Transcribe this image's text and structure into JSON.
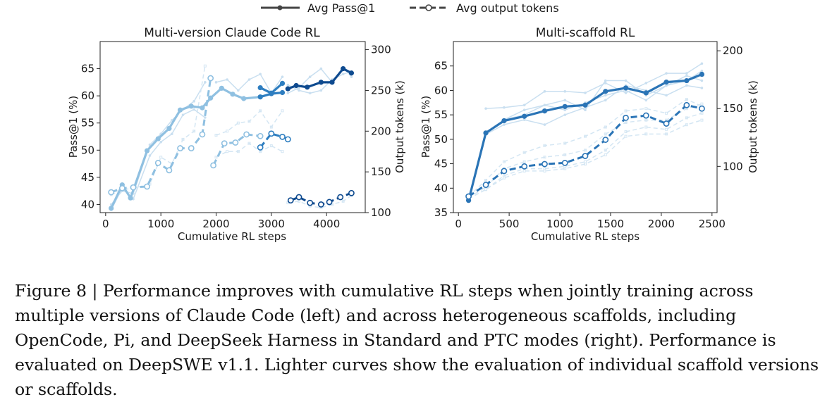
{
  "legend": {
    "pass_label": "Avg Pass@1",
    "tokens_label": "Avg output tokens"
  },
  "caption": "Figure 8 | Performance improves with cumulative RL steps when jointly training across multiple versions of Claude Code (left) and across heterogeneous scaffolds, including OpenCode, Pi, and DeepSeek Harness in Standard and PTC modes (right). Performance is evaluated on DeepSWE v1.1. Lighter curves show the evaluation of individual scaffold versions or scaffolds.",
  "chart_data": [
    {
      "type": "line",
      "title": "Multi-version Claude Code RL",
      "xlabel": "Cumulative RL steps",
      "ylabel_left": "Pass@1 (%)",
      "ylabel_right": "Output tokens (k)",
      "xlim": [
        -100,
        4700
      ],
      "ylim_left": [
        38.5,
        70
      ],
      "ylim_right": [
        100,
        310
      ],
      "xticks": [
        0,
        1000,
        2000,
        3000,
        4000
      ],
      "yticks_left": [
        40,
        45,
        50,
        55,
        60,
        65
      ],
      "yticks_right": [
        100,
        150,
        200,
        250,
        300
      ],
      "segments": [
        {
          "color": "#8fc0e1",
          "pass": {
            "x": [
              100,
              300,
              450,
              750,
              950,
              1150,
              1350,
              1550,
              1750,
              1900,
              2100,
              2300,
              2500,
              2800
            ],
            "y": [
              39.3,
              43.6,
              41.2,
              49.9,
              52.1,
              54.0,
              57.4,
              58.1,
              57.8,
              59.6,
              61.4,
              60.3,
              59.5,
              59.8
            ]
          },
          "tokens": {
            "x": [
              100,
              300,
              500,
              750,
              950,
              1150,
              1350,
              1550,
              1750,
              1900
            ],
            "y": [
              125,
              130,
              131,
              132,
              161,
              152,
              179,
              179,
              196,
              265
            ]
          },
          "tokens_b": {
            "x": [
              1950,
              2150,
              2350,
              2550,
              2800
            ],
            "y": [
              158,
              185,
              186,
              196,
              194
            ]
          }
        },
        {
          "color": "#2e7ec0",
          "pass": {
            "x": [
              2800,
              3000,
              3200
            ],
            "y": [
              61.5,
              60.5,
              62.3
            ]
          },
          "pass_b": {
            "x": [
              2800,
              3000,
              3200
            ],
            "y": [
              59.8,
              60.4,
              60.6
            ]
          },
          "tokens": {
            "x": [
              2800,
              3000,
              3200,
              3300
            ],
            "y": [
              180,
              197,
              193,
              190
            ]
          }
        },
        {
          "color": "#0e4a8f",
          "pass": {
            "x": [
              3300,
              3450,
              3650,
              3900,
              4100,
              4300,
              4450
            ],
            "y": [
              61.3,
              61.9,
              61.6,
              62.5,
              62.5,
              65.0,
              64.2
            ]
          },
          "tokens": {
            "x": [
              3350,
              3500,
              3700,
              3900,
              4050,
              4250,
              4450
            ],
            "y": [
              115,
              119,
              112,
              110,
              113,
              119,
              124
            ]
          }
        }
      ],
      "background": [
        {
          "x": [
            100,
            300,
            500,
            800,
            1000,
            1200,
            1400,
            1600,
            1800
          ],
          "y": [
            40,
            42.5,
            42,
            51,
            53,
            55.5,
            57.5,
            59,
            62.5
          ]
        },
        {
          "x": [
            100,
            300,
            500,
            800,
            1000,
            1200,
            1400,
            1600,
            1800
          ],
          "y": [
            39,
            43,
            41,
            49,
            51.5,
            53,
            56.5,
            57.5,
            56
          ]
        },
        {
          "x": [
            2000,
            2200,
            2400,
            2600,
            2800,
            3000,
            3200
          ],
          "y": [
            62.5,
            63,
            61,
            63,
            64,
            60.5,
            63.5
          ]
        },
        {
          "x": [
            3300,
            3500,
            3700,
            3900,
            4100,
            4300,
            4450
          ],
          "y": [
            60.5,
            61.5,
            63.5,
            65,
            62.5,
            65.3,
            63.5
          ]
        },
        {
          "x": [
            3300,
            3500,
            3700,
            3900,
            4100,
            4300,
            4450
          ],
          "y": [
            62,
            61,
            60.5,
            61,
            63,
            64,
            64.5
          ]
        }
      ],
      "background_tokens": [
        {
          "x": [
            100,
            300,
            500,
            800,
            1000,
            1200,
            1400,
            1600,
            1800
          ],
          "y": [
            122,
            128,
            130,
            135,
            168,
            160,
            190,
            200,
            280
          ]
        },
        {
          "x": [
            2000,
            2200,
            2400,
            2600,
            2800,
            3000,
            3200
          ],
          "y": [
            168,
            175,
            175,
            185,
            175,
            182,
            175
          ]
        },
        {
          "x": [
            2000,
            2200,
            2400,
            2600,
            2800,
            3000,
            3200
          ],
          "y": [
            195,
            200,
            210,
            212,
            225,
            205,
            225
          ]
        },
        {
          "x": [
            3300,
            3500,
            3700,
            3900,
            4100,
            4300,
            4450
          ],
          "y": [
            112,
            114,
            108,
            106,
            110,
            114,
            121
          ]
        }
      ]
    },
    {
      "type": "line",
      "title": "Multi-scaffold RL",
      "xlabel": "Cumulative RL steps",
      "ylabel_left": "Pass@1 (%)",
      "ylabel_right": "Output tokens (k)",
      "xlim": [
        -50,
        2550
      ],
      "ylim_left": [
        35,
        70
      ],
      "ylim_right": [
        60,
        208
      ],
      "xticks": [
        0,
        500,
        1000,
        1500,
        2000,
        2500
      ],
      "yticks_left": [
        35,
        40,
        45,
        50,
        55,
        60,
        65
      ],
      "yticks_right": [
        100,
        150,
        200
      ],
      "segments": [
        {
          "color": "#2a74b6",
          "pass": {
            "x": [
              100,
              270,
              450,
              650,
              850,
              1050,
              1250,
              1450,
              1650,
              1850,
              2050,
              2250,
              2400
            ],
            "y": [
              37.5,
              51.3,
              53.8,
              54.7,
              55.8,
              56.7,
              57.0,
              59.8,
              60.5,
              59.5,
              61.7,
              62.0,
              63.3
            ]
          },
          "tokens": {
            "x": [
              100,
              270,
              450,
              650,
              850,
              1050,
              1250,
              1450,
              1650,
              1850,
              2050,
              2250,
              2400
            ],
            "y": [
              74,
              84,
              96,
              100,
              102,
              103,
              109,
              123,
              142,
              144,
              137,
              153,
              150
            ]
          }
        }
      ],
      "background": [
        {
          "x": [
            270,
            450,
            650,
            850,
            1050,
            1250,
            1450,
            1650,
            1850,
            2050,
            2250,
            2400
          ],
          "y": [
            56.3,
            56.5,
            57,
            59.8,
            59.8,
            59.5,
            61.5,
            59.5,
            61.5,
            63.5,
            63.5,
            65.5
          ]
        },
        {
          "x": [
            270,
            450,
            650,
            850,
            1050,
            1250,
            1450,
            1650,
            1850,
            2050,
            2250,
            2400
          ],
          "y": [
            51,
            54,
            55,
            57,
            58,
            56,
            62,
            62,
            59,
            61,
            63,
            62
          ]
        },
        {
          "x": [
            270,
            450,
            650,
            850,
            1050,
            1250,
            1450,
            1650,
            1850,
            2050,
            2250,
            2400
          ],
          "y": [
            51,
            53,
            54,
            53,
            55,
            56.5,
            58,
            61,
            60,
            59,
            61,
            60.5
          ]
        },
        {
          "x": [
            450,
            650,
            850,
            1050,
            1250,
            1450,
            1650,
            1850,
            2050,
            2250,
            2400
          ],
          "y": [
            54,
            56,
            57,
            56,
            57.5,
            59,
            60,
            58,
            61,
            62,
            64
          ]
        }
      ],
      "background_tokens": [
        {
          "x": [
            100,
            270,
            450,
            650,
            850,
            1050,
            1250,
            1450,
            1650,
            1850,
            2050,
            2250,
            2400
          ],
          "y": [
            74,
            88,
            104,
            112,
            118,
            120,
            126,
            134,
            148,
            150,
            146,
            158,
            152
          ]
        },
        {
          "x": [
            100,
            270,
            450,
            650,
            850,
            1050,
            1250,
            1450,
            1650,
            1850,
            2050,
            2250,
            2400
          ],
          "y": [
            72,
            80,
            92,
            98,
            98,
            100,
            104,
            114,
            130,
            134,
            132,
            142,
            146
          ]
        },
        {
          "x": [
            100,
            270,
            450,
            650,
            850,
            1050,
            1250,
            1450,
            1650,
            1850,
            2050,
            2250,
            2400
          ],
          "y": [
            73,
            82,
            98,
            104,
            108,
            110,
            114,
            128,
            138,
            140,
            140,
            150,
            154
          ]
        },
        {
          "x": [
            100,
            270,
            450,
            650,
            850,
            1050,
            1250,
            1450,
            1650,
            1850,
            2050,
            2250,
            2400
          ],
          "y": [
            72,
            80,
            90,
            96,
            96,
            98,
            102,
            110,
            126,
            128,
            128,
            136,
            140
          ]
        }
      ]
    }
  ]
}
